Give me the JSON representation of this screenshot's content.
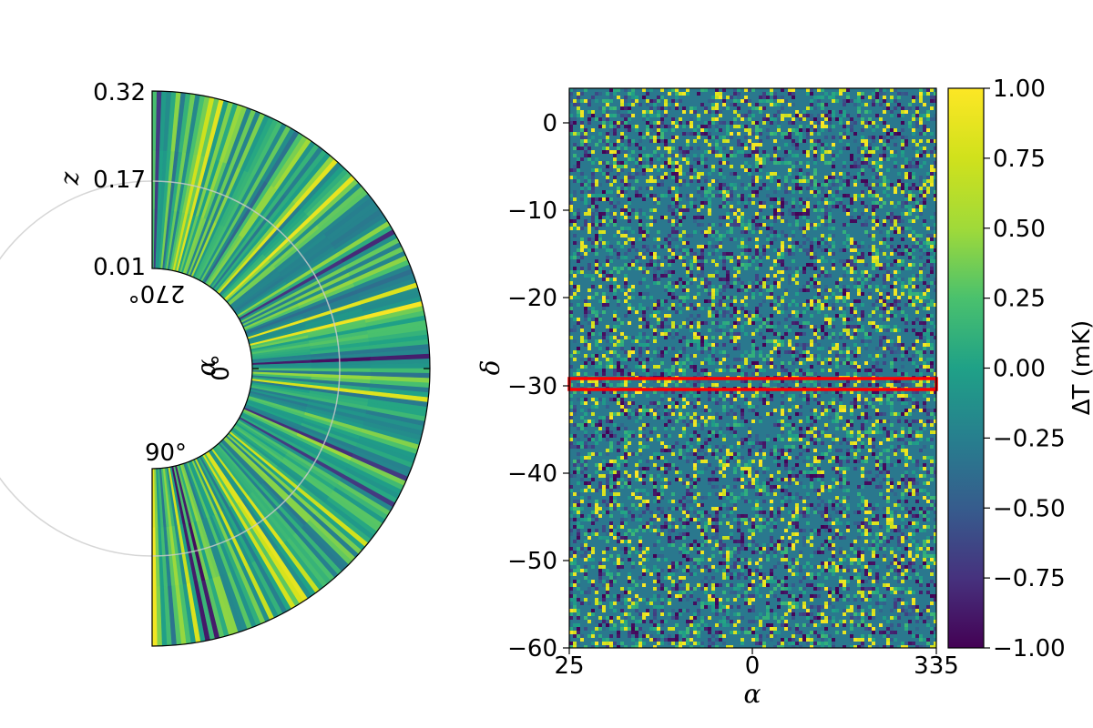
{
  "chart_data": [
    {
      "type": "heatmap",
      "projection": "polar-wedge",
      "title": "",
      "radial_axis": {
        "label": "z",
        "ticks": [
          "0.01",
          "0.17",
          "0.32"
        ],
        "range": [
          0.01,
          0.32
        ]
      },
      "angular_axis": {
        "label": "α",
        "ticks": [
          "270°",
          "0°",
          "90°"
        ]
      },
      "grid": true,
      "colormap": "viridis"
    },
    {
      "type": "heatmap",
      "title": "",
      "xlabel": "α",
      "ylabel": "δ",
      "x_ticks": [
        "25",
        "0",
        "335"
      ],
      "y_ticks": [
        "0",
        "−10",
        "−20",
        "−30",
        "−40",
        "−50",
        "−60"
      ],
      "ylim": [
        -60,
        4
      ],
      "colormap": "viridis",
      "highlight_band": {
        "y_center": -30,
        "y_halfwidth": 1.0,
        "color": "#ff0000"
      }
    }
  ],
  "colorbar": {
    "label": "ΔT (mK)",
    "range": [
      -1.0,
      1.0
    ],
    "ticks": [
      "1.00",
      "0.75",
      "0.50",
      "0.25",
      "0.00",
      "−0.25",
      "−0.50",
      "−0.75",
      "−1.00"
    ],
    "tick_values": [
      1.0,
      0.75,
      0.5,
      0.25,
      0.0,
      -0.25,
      -0.5,
      -0.75,
      -1.0
    ]
  }
}
